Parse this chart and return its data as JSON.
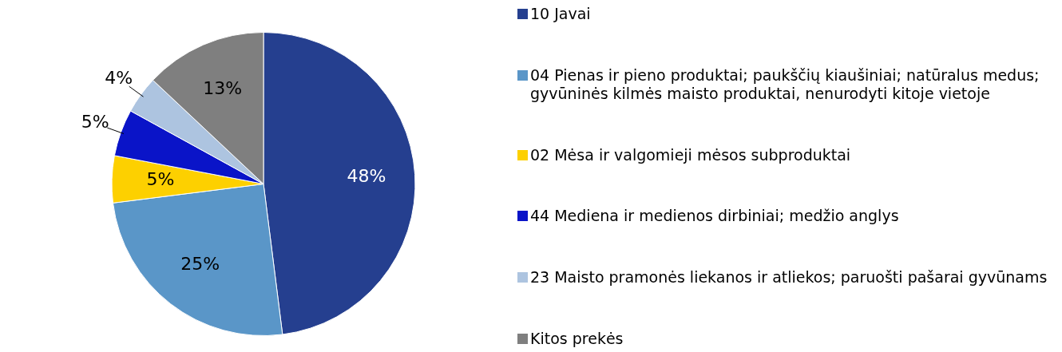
{
  "chart_data": {
    "type": "pie",
    "categories": [
      "10 Javai",
      "04 Pienas ir pieno produktai; paukščių kiaušiniai; natūralus medus; gyvūninės kilmės maisto produktai, nenurodyti kitoje vietoje",
      "02 Mėsa ir valgomieji mėsos subproduktai",
      "44 Mediena ir medienos dirbiniai; medžio anglys",
      "23 Maisto pramonės liekanos ir atliekos; paruošti pašarai gyvūnams",
      "Kitos prekės"
    ],
    "values": [
      48,
      25,
      5,
      5,
      4,
      13
    ],
    "colors": [
      "#253f8f",
      "#5a96c8",
      "#fdd000",
      "#0a14c8",
      "#adc4e0",
      "#7f7f7f"
    ],
    "value_labels": [
      "48%",
      "25%",
      "5%",
      "5%",
      "4%",
      "13%"
    ],
    "legend": "right"
  }
}
